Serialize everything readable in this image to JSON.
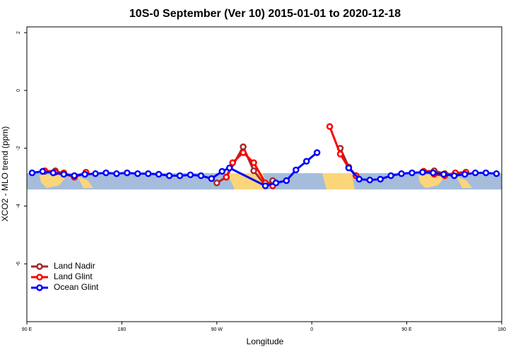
{
  "chart_data": {
    "type": "line",
    "title": "10S-0 September (Ver 10)   2015-01-01 to 2020-12-18",
    "x_label": "Longitude",
    "y_label": "XCO2 - MLO trend (ppm)",
    "xlim": [
      90,
      540
    ],
    "ylim": [
      -8,
      2.2
    ],
    "xticks": [
      {
        "value": 90,
        "label": "90 E"
      },
      {
        "value": 180,
        "label": "180"
      },
      {
        "value": 270,
        "label": "90 W"
      },
      {
        "value": 360,
        "label": "0"
      },
      {
        "value": 450,
        "label": "90 E"
      },
      {
        "value": 540,
        "label": "180"
      }
    ],
    "yticks": [
      2,
      0,
      -2,
      -4,
      -6
    ],
    "legend": "bottom-left",
    "series": [
      {
        "name": "Land Nadir",
        "color": "#a52a2a",
        "x": [
          107,
          117,
          125,
          135,
          146,
          null,
          270,
          279,
          295,
          305,
          316,
          323,
          null,
          387,
          395,
          402,
          null,
          466,
          476,
          486,
          496,
          506
        ],
        "values": [
          -2.8,
          -2.78,
          -2.88,
          -3.0,
          -2.85,
          null,
          -3.2,
          -3.0,
          -1.95,
          -2.78,
          -3.28,
          -3.12,
          null,
          -2.0,
          -2.65,
          -2.95,
          null,
          -2.8,
          -2.78,
          -2.88,
          -2.9,
          -2.83
        ]
      },
      {
        "name": "Land Glint",
        "color": "#ff0000",
        "x": [
          107,
          117,
          125,
          135,
          146,
          null,
          279,
          285,
          295,
          305,
          316,
          323,
          null,
          377,
          387,
          395,
          402,
          null,
          466,
          476,
          486,
          496,
          506
        ],
        "values": [
          -2.78,
          -2.83,
          -2.85,
          -3.0,
          -2.83,
          null,
          -3.0,
          -2.5,
          -2.15,
          -2.5,
          -3.2,
          -3.3,
          null,
          -1.25,
          -2.2,
          -2.68,
          -2.95,
          null,
          -2.8,
          -2.9,
          -2.95,
          -2.85,
          -2.83
        ]
      },
      {
        "name": "Ocean Glint",
        "color": "#0000ff",
        "x": [
          95,
          105,
          115,
          125,
          135,
          145,
          155,
          165,
          175,
          185,
          195,
          205,
          215,
          225,
          235,
          245,
          255,
          265,
          275,
          282,
          316,
          326,
          336,
          345,
          355,
          365,
          null,
          395,
          405,
          415,
          425,
          435,
          445,
          455,
          465,
          475,
          485,
          495,
          505,
          515,
          525,
          535
        ],
        "values": [
          -2.85,
          -2.8,
          -2.85,
          -2.9,
          -2.95,
          -2.9,
          -2.88,
          -2.85,
          -2.88,
          -2.85,
          -2.88,
          -2.88,
          -2.9,
          -2.95,
          -2.95,
          -2.92,
          -2.95,
          -3.05,
          -2.8,
          -2.68,
          -3.3,
          -3.2,
          -3.12,
          -2.75,
          -2.45,
          -2.15,
          null,
          -2.68,
          -3.07,
          -3.1,
          -3.07,
          -2.95,
          -2.88,
          -2.85,
          -2.83,
          -2.85,
          -2.9,
          -2.95,
          -2.9,
          -2.85,
          -2.85,
          -2.88
        ]
      }
    ]
  }
}
